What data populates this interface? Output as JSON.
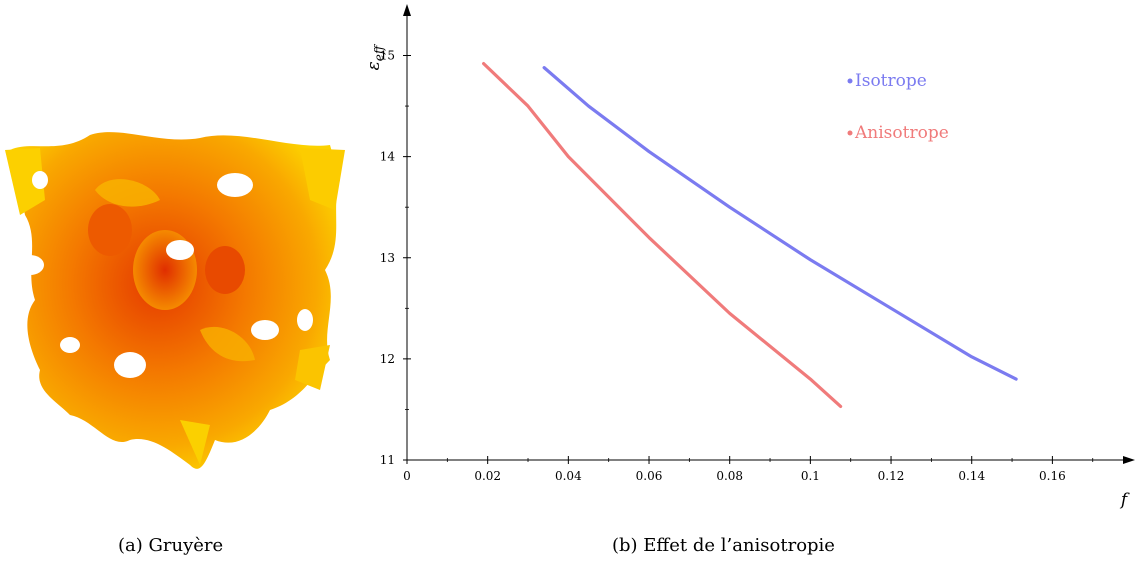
{
  "captions": {
    "a": "(a)  Gruyère",
    "b": "(b)  Effet de l’anisotropie"
  },
  "image": {
    "description_icon": "gruyere-surface-icon"
  },
  "chart_data": {
    "type": "line",
    "xlabel": "f",
    "ylabel": "ε_eff",
    "xlim": [
      0,
      0.178
    ],
    "ylim": [
      11,
      15.45
    ],
    "x_ticks": [
      0,
      0.02,
      0.04,
      0.06,
      0.08,
      0.1,
      0.12,
      0.14,
      0.16
    ],
    "x_tick_labels": [
      "0",
      "0.02",
      "0.04",
      "0.06",
      "0.08",
      "0.1",
      "0.12",
      "0.14",
      "0.16"
    ],
    "y_ticks": [
      11,
      12,
      13,
      14,
      15
    ],
    "y_tick_labels": [
      "11",
      "12",
      "13",
      "14",
      "15"
    ],
    "legend_position": "top-right",
    "grid": false,
    "series": [
      {
        "name": "Isotrope",
        "color": "#7b7bf0",
        "x": [
          0.034,
          0.045,
          0.06,
          0.08,
          0.1,
          0.12,
          0.14,
          0.151
        ],
        "y": [
          14.88,
          14.5,
          14.05,
          13.5,
          12.98,
          12.5,
          12.02,
          11.8
        ]
      },
      {
        "name": "Anisotrope",
        "color": "#f07b7b",
        "x": [
          0.019,
          0.03,
          0.04,
          0.06,
          0.08,
          0.1,
          0.1075
        ],
        "y": [
          14.92,
          14.5,
          14.0,
          13.2,
          12.45,
          11.8,
          11.53
        ]
      }
    ]
  }
}
